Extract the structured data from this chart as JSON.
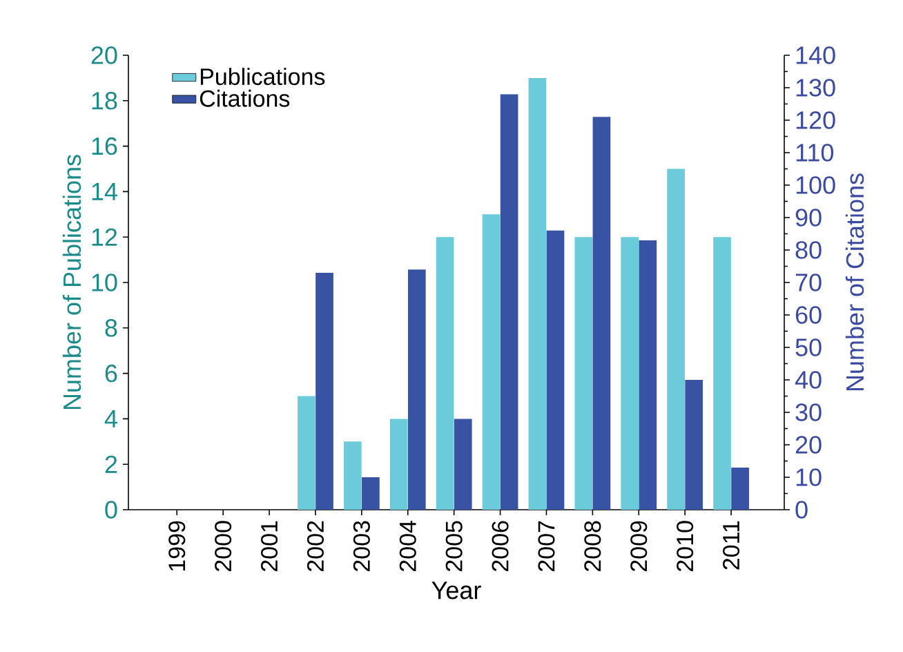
{
  "chart_data": {
    "type": "bar",
    "xlabel": "Year",
    "ylabel": "Number of Publications",
    "y2label": "Number of Citations",
    "categories": [
      "1999",
      "2000",
      "2001",
      "2002",
      "2003",
      "2004",
      "2005",
      "2006",
      "2007",
      "2008",
      "2009",
      "2010",
      "2011"
    ],
    "series": [
      {
        "name": "Publications",
        "color": "#6bcbdb",
        "values": [
          0,
          0,
          0,
          5,
          3,
          4,
          12,
          13,
          19,
          12,
          12,
          15,
          12
        ]
      },
      {
        "name": "Citations",
        "color": "#3853a4",
        "axis": "y2",
        "values": [
          0,
          0,
          0,
          73,
          10,
          74,
          28,
          128,
          86,
          121,
          83,
          40,
          13
        ]
      }
    ],
    "ylim": [
      0,
      20
    ],
    "yticks": [
      0,
      2,
      4,
      6,
      8,
      10,
      12,
      14,
      16,
      18,
      20
    ],
    "y2lim": [
      0,
      140
    ],
    "y2ticks": [
      0,
      10,
      20,
      30,
      40,
      50,
      60,
      70,
      80,
      90,
      100,
      110,
      120,
      130,
      140
    ],
    "legend": "top left",
    "grid": false
  }
}
